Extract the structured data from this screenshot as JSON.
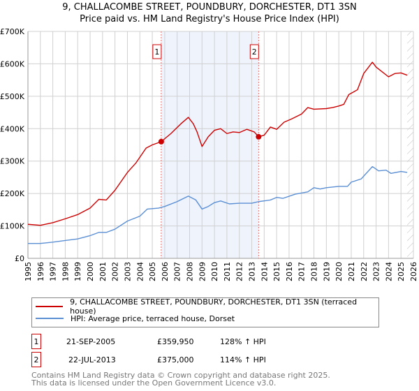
{
  "chart_data": {
    "type": "line",
    "title": "9, CHALLACOMBE STREET, POUNDBURY, DORCHESTER, DT1 3SN",
    "subtitle": "Price paid vs. HM Land Registry's House Price Index (HPI)",
    "xlim": [
      1995,
      2026
    ],
    "ylim": [
      0,
      700000
    ],
    "x_ticks": [
      "1995",
      "1996",
      "1997",
      "1998",
      "1999",
      "2000",
      "2001",
      "2002",
      "2003",
      "2004",
      "2005",
      "2006",
      "2007",
      "2008",
      "2009",
      "2010",
      "2011",
      "2012",
      "2013",
      "2014",
      "2015",
      "2016",
      "2017",
      "2018",
      "2019",
      "2020",
      "2021",
      "2022",
      "2023",
      "2024",
      "2025",
      "2026"
    ],
    "y_ticks": [
      {
        "v": 0,
        "label": "£0"
      },
      {
        "v": 100000,
        "label": "£100K"
      },
      {
        "v": 200000,
        "label": "£200K"
      },
      {
        "v": 300000,
        "label": "£300K"
      },
      {
        "v": 400000,
        "label": "£400K"
      },
      {
        "v": 500000,
        "label": "£500K"
      },
      {
        "v": 600000,
        "label": "£600K"
      },
      {
        "v": 700000,
        "label": "£700K"
      }
    ],
    "grid": true,
    "shaded_range": [
      2005.72,
      2013.55
    ],
    "forecast_from": 2025.5,
    "series": [
      {
        "name": "9, CHALLACOMBE STREET, POUNDBURY, DORCHESTER, DT1 3SN (terraced house)",
        "color": "#cc0000",
        "x": [
          1995,
          1996,
          1997,
          1998,
          1999,
          2000,
          2000.7,
          2001.3,
          2002,
          2003,
          2003.7,
          2004.5,
          2005,
          2005.72,
          2006.5,
          2007.3,
          2007.9,
          2008.3,
          2008.6,
          2009,
          2009.5,
          2010,
          2010.5,
          2011,
          2011.5,
          2012,
          2012.6,
          2013.2,
          2013.55,
          2014,
          2014.5,
          2015,
          2015.6,
          2016.2,
          2017,
          2017.5,
          2018,
          2019,
          2019.5,
          2020,
          2020.4,
          2020.8,
          2021.5,
          2022,
          2022.7,
          2023,
          2023.5,
          2024,
          2024.5,
          2025,
          2025.5
        ],
        "y": [
          105000,
          102000,
          110000,
          122000,
          135000,
          155000,
          182000,
          180000,
          210000,
          265000,
          295000,
          340000,
          350000,
          359950,
          385000,
          415000,
          435000,
          415000,
          390000,
          345000,
          375000,
          395000,
          400000,
          385000,
          390000,
          388000,
          398000,
          390000,
          375000,
          380000,
          405000,
          398000,
          420000,
          430000,
          445000,
          465000,
          460000,
          462000,
          465000,
          470000,
          475000,
          505000,
          520000,
          570000,
          605000,
          590000,
          575000,
          560000,
          570000,
          572000,
          565000
        ]
      },
      {
        "name": "HPI: Average price, terraced house, Dorset",
        "color": "#5b8fd4",
        "x": [
          1995,
          1996,
          1997,
          1998,
          1999,
          2000,
          2000.7,
          2001.3,
          2002,
          2003,
          2004,
          2004.6,
          2005.5,
          2006,
          2007,
          2007.9,
          2008.5,
          2009,
          2009.5,
          2010,
          2010.5,
          2011.2,
          2012,
          2013,
          2013.55,
          2014.5,
          2015,
          2015.5,
          2016.5,
          2017.5,
          2018,
          2018.5,
          2019,
          2020,
          2020.7,
          2021,
          2021.8,
          2022.7,
          2023.2,
          2023.8,
          2024.2,
          2025,
          2025.5
        ],
        "y": [
          46000,
          46000,
          50000,
          55000,
          60000,
          70000,
          80000,
          80000,
          90000,
          115000,
          130000,
          152000,
          155000,
          160000,
          175000,
          192000,
          180000,
          152000,
          160000,
          172000,
          177000,
          168000,
          170000,
          170000,
          175000,
          180000,
          188000,
          185000,
          198000,
          205000,
          218000,
          214000,
          218000,
          222000,
          222000,
          235000,
          245000,
          283000,
          270000,
          272000,
          262000,
          268000,
          265000
        ]
      }
    ],
    "sales": [
      {
        "n": "1",
        "x": 2005.72,
        "y": 359950,
        "date": "21-SEP-2005",
        "price": "£359,950",
        "hpi": "128% ↑ HPI"
      },
      {
        "n": "2",
        "x": 2013.55,
        "y": 375000,
        "date": "22-JUL-2013",
        "price": "£375,000",
        "hpi": "114% ↑ HPI"
      }
    ]
  },
  "footer": {
    "line1": "Contains HM Land Registry data © Crown copyright and database right 2025.",
    "line2": "This data is licensed under the Open Government Licence v3.0."
  }
}
